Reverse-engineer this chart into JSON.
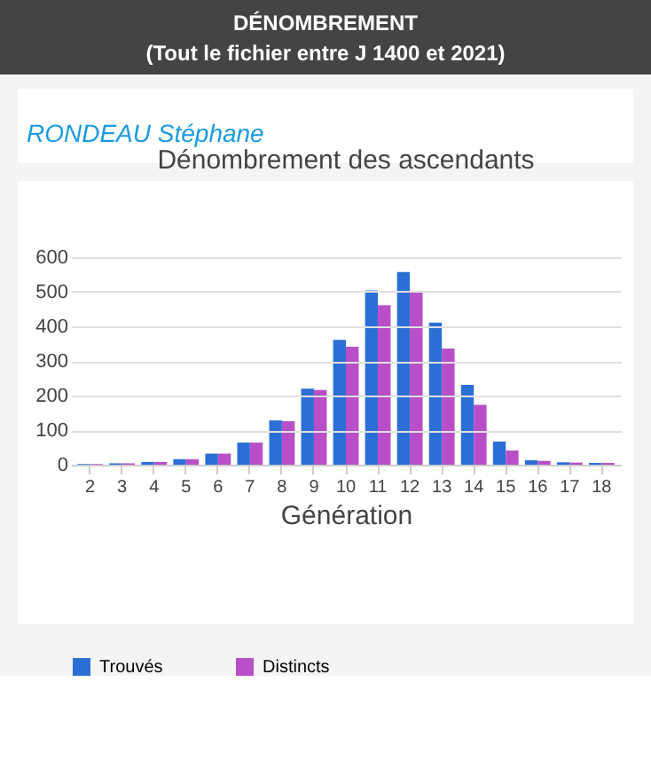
{
  "chart_data": {
    "type": "bar",
    "title": "Dénombrement des ascendants",
    "xlabel": "Génération",
    "annotations": [
      "DÉNOMBREMENT",
      "(Tout le fichier entre J 1400 et 2021)",
      "RONDEAU Stéphane"
    ],
    "categories": [
      "2",
      "3",
      "4",
      "5",
      "6",
      "7",
      "8",
      "9",
      "10",
      "11",
      "12",
      "13",
      "14",
      "15",
      "16",
      "17",
      "18"
    ],
    "series": [
      {
        "name": "Trouvés",
        "color": "#2b6fd6",
        "values": [
          2,
          4,
          8,
          16,
          32,
          64,
          128,
          220,
          361,
          504,
          557,
          411,
          231,
          67,
          13,
          7,
          5
        ]
      },
      {
        "name": "Distincts",
        "color": "#b94fc8",
        "values": [
          2,
          4,
          8,
          16,
          32,
          64,
          126,
          216,
          341,
          461,
          499,
          336,
          173,
          41,
          11,
          6,
          5
        ]
      }
    ],
    "ylim": [
      0,
      600
    ],
    "yticks": [
      0,
      100,
      200,
      300,
      400,
      500,
      600
    ],
    "grid": "y",
    "legend": "bottom"
  }
}
